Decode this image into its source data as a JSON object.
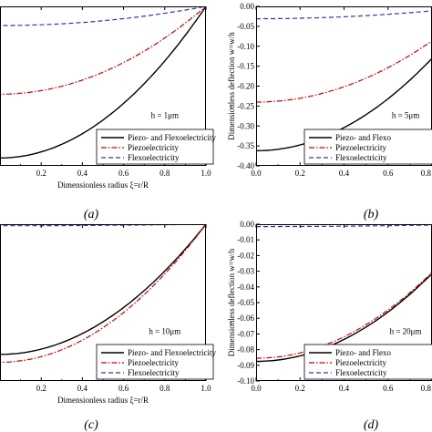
{
  "panel_labels": [
    "(a)",
    "(b)",
    "(c)",
    "(d)"
  ],
  "legend_entries": [
    "Piezo- and Flexoelectricity",
    "Piezoelectricity",
    "Flexoelectricity"
  ],
  "legend_entries_cut": [
    "Piezo- and Flexo",
    "Piezoelectricity",
    "Flexoelectricity"
  ],
  "x_axis_label": "Dimensionless radius ξ=r/R",
  "y_axis_label": "Dimensionless deflection w=w/h",
  "series_colors": {
    "combined": "#000000",
    "piezo": "#cc0000",
    "flexo": "#2b3aa8"
  },
  "chart_data": [
    {
      "type": "line",
      "panel": "(a)",
      "annotation": "h = 1μm",
      "xlabel": "Dimensionless radius ξ=r/R",
      "ylabel": "",
      "xlim": [
        0,
        1.0
      ],
      "xticks": [
        "0.2",
        "0.4",
        "0.6",
        "0.8",
        "1.0"
      ],
      "xtick_values": [
        0.2,
        0.4,
        0.6,
        0.8,
        1.0
      ],
      "legend": "lower-right",
      "curves_px": {
        "x0": 0.0,
        "combined_y0": 0.95,
        "piezo_y0": 0.55,
        "flexo_y0": 0.12
      },
      "series": [
        {
          "name": "Piezo- and Flexoelectricity",
          "style": "solid"
        },
        {
          "name": "Piezoelectricity",
          "style": "dashdot"
        },
        {
          "name": "Flexoelectricity",
          "style": "dashed"
        }
      ]
    },
    {
      "type": "line",
      "panel": "(b)",
      "annotation": "h = 5μm",
      "xlabel": "",
      "ylabel": "Dimensionless deflection w=w/h",
      "xlim": [
        0,
        0.8
      ],
      "ylim": [
        -0.4,
        0.0
      ],
      "xticks": [
        "0.0",
        "0.2",
        "0.4",
        "0.6",
        "0.8"
      ],
      "xtick_values": [
        0.0,
        0.2,
        0.4,
        0.6,
        0.8
      ],
      "yticks": [
        "0.00",
        "-0.05",
        "-0.10",
        "-0.15",
        "-0.20",
        "-0.25",
        "-0.30",
        "-0.35",
        "-0.40"
      ],
      "ytick_values": [
        0.0,
        -0.05,
        -0.1,
        -0.15,
        -0.2,
        -0.25,
        -0.3,
        -0.35,
        -0.4
      ],
      "legend": "lower-right",
      "series": [
        {
          "name": "Piezo- and Flexoelectricity",
          "style": "solid",
          "y0": -0.362
        },
        {
          "name": "Piezoelectricity",
          "style": "dashdot",
          "y0": -0.24
        },
        {
          "name": "Flexoelectricity",
          "style": "dashed",
          "y0": -0.031
        }
      ]
    },
    {
      "type": "line",
      "panel": "(c)",
      "annotation": "h = 10μm",
      "xlabel": "Dimensionless radius ξ=r/R",
      "ylabel": "",
      "xlim": [
        0,
        1.0
      ],
      "xticks": [
        "0.2",
        "0.4",
        "0.6",
        "0.8",
        "1.0"
      ],
      "xtick_values": [
        0.2,
        0.4,
        0.6,
        0.8,
        1.0
      ],
      "legend": "lower-right",
      "curves_px": {
        "x0": 0.0,
        "combined_y0": 0.83,
        "piezo_y0": 0.88,
        "flexo_y0": 0.01
      },
      "series": [
        {
          "name": "Piezo- and Flexoelectricity",
          "style": "solid"
        },
        {
          "name": "Piezoelectricity",
          "style": "dashdot"
        },
        {
          "name": "Flexoelectricity",
          "style": "dashed"
        }
      ]
    },
    {
      "type": "line",
      "panel": "(d)",
      "annotation": "h = 20μm",
      "xlabel": "",
      "ylabel": "Dimensionless deflection w=w/h",
      "xlim": [
        0,
        0.8
      ],
      "ylim": [
        -0.1,
        0.0
      ],
      "xticks": [
        "0.0",
        "0.2",
        "0.4",
        "0.6",
        "0.8"
      ],
      "xtick_values": [
        0.0,
        0.2,
        0.4,
        0.6,
        0.8
      ],
      "yticks": [
        "0.00",
        "-0.01",
        "-0.02",
        "-0.03",
        "-0.04",
        "-0.05",
        "-0.06",
        "-0.07",
        "-0.08",
        "-0.09",
        "-0.10"
      ],
      "ytick_values": [
        0.0,
        -0.01,
        -0.02,
        -0.03,
        -0.04,
        -0.05,
        -0.06,
        -0.07,
        -0.08,
        -0.09,
        -0.1
      ],
      "legend": "lower-right",
      "series": [
        {
          "name": "Piezo- and Flexoelectricity",
          "style": "solid",
          "y0": -0.0875
        },
        {
          "name": "Piezoelectricity",
          "style": "dashdot",
          "y0": -0.0855
        },
        {
          "name": "Flexoelectricity",
          "style": "dashed",
          "y0": -0.0015
        }
      ]
    }
  ]
}
